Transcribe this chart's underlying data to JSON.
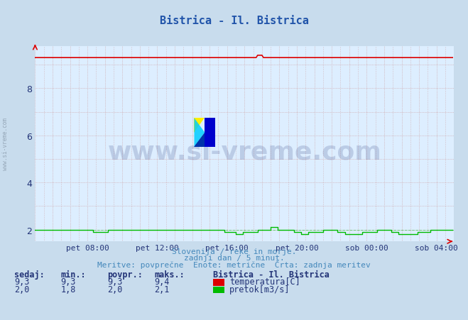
{
  "title": "Bistrica - Il. Bistrica",
  "title_color": "#2255aa",
  "bg_color": "#c8dced",
  "plot_bg_color": "#ddeeff",
  "xlim": [
    0,
    288
  ],
  "ylim": [
    1.5,
    9.8
  ],
  "yticks": [
    2,
    4,
    6,
    8
  ],
  "xtick_labels": [
    "pet 08:00",
    "pet 12:00",
    "pet 16:00",
    "pet 20:00",
    "sob 00:00",
    "sob 04:00"
  ],
  "xtick_positions": [
    36,
    84,
    132,
    180,
    228,
    276
  ],
  "temp_color": "#dd0000",
  "flow_color": "#00bb00",
  "subtitle1": "Slovenija / reke in morje.",
  "subtitle2": "zadnji dan / 5 minut.",
  "subtitle3": "Meritve: povprečne  Enote: metrične  Črta: zadnja meritev",
  "subtitle_color": "#4488bb",
  "legend_title": "Bistrica - Il. Bistrica",
  "legend_color": "#223377",
  "table_headers": [
    "sedaj:",
    "min.:",
    "povpr.:",
    "maks.:"
  ],
  "table_temp": [
    "9,3",
    "9,3",
    "9,3",
    "9,4"
  ],
  "table_flow": [
    "2,0",
    "1,8",
    "2,0",
    "2,1"
  ],
  "watermark_text": "www.si-vreme.com",
  "watermark_color": "#223377",
  "watermark_alpha": 0.18,
  "axis_arrow_color": "#dd0000",
  "tick_label_color": "#223377",
  "side_label_color": "#8899aa",
  "grid_v_color": "#cc9999",
  "grid_h_color": "#cc9999",
  "temp_label": "temperatura[C]",
  "flow_label": "pretok[m3/s]"
}
